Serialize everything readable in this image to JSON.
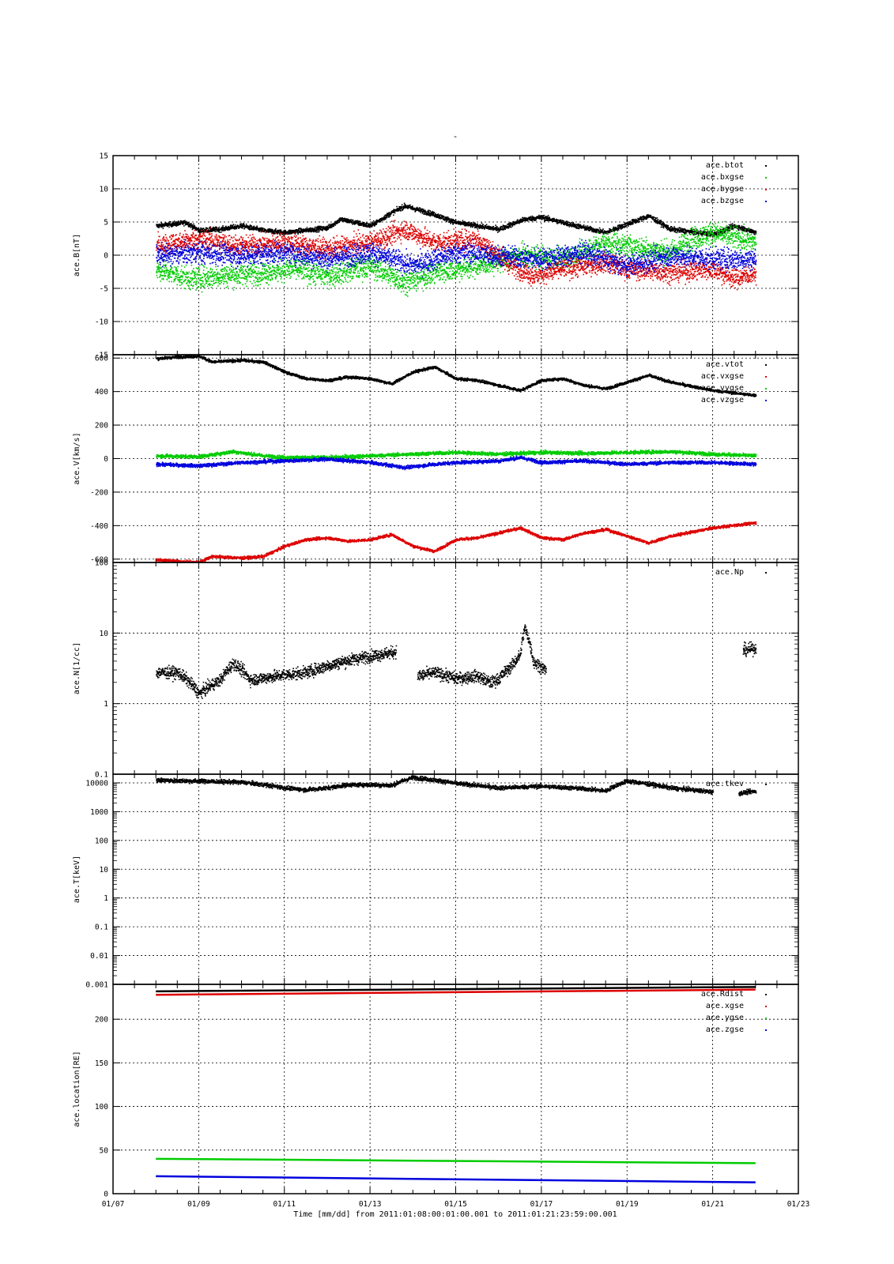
{
  "page_title": "-",
  "x_axis": {
    "label": "Time [mm/dd]  from 2011:01:08:00:01:00.001  to  2011:01:21:23:59:00.001",
    "range_days": [
      7,
      23
    ],
    "tick_labels": [
      "01/07",
      "01/09",
      "01/11",
      "01/13",
      "01/15",
      "01/17",
      "01/19",
      "01/21",
      "01/23"
    ],
    "tick_days": [
      7,
      9,
      11,
      13,
      15,
      17,
      19,
      21,
      23
    ],
    "data_start_day": 8.0,
    "data_end_day": 22.0
  },
  "colors": {
    "black": "#000000",
    "red": "#dd0000",
    "green": "#00cc00",
    "blue": "#0000dd",
    "grid": "#000000"
  },
  "chart_data": [
    {
      "type": "scatter",
      "ylabel": "ace.B[nT]",
      "ylim": [
        -15,
        15
      ],
      "yscale": "linear",
      "yticks": [
        -15,
        -10,
        -5,
        0,
        5,
        10,
        15
      ],
      "ytick_labels": [
        "-15",
        "-10",
        "-5",
        "0",
        "5",
        "10",
        "15"
      ],
      "legend": "top-right",
      "series": [
        {
          "name": "ace.btot",
          "color": "black",
          "noise": 0.35,
          "x": [
            8,
            8.7,
            9,
            9.5,
            10,
            10.5,
            11,
            12,
            12.3,
            13,
            13.5,
            13.8,
            14.5,
            15,
            16,
            16.6,
            17,
            18,
            18.5,
            19,
            19.5,
            20,
            21,
            21.5,
            22
          ],
          "y": [
            4.5,
            5,
            3.8,
            4,
            4.5,
            3.8,
            3.5,
            4.2,
            5.5,
            4.5,
            6.5,
            7.5,
            6.2,
            5,
            4,
            5.5,
            5.8,
            4.2,
            3.5,
            4.8,
            6,
            4,
            3.2,
            4.5,
            3.5
          ]
        },
        {
          "name": "ace.bxgse",
          "color": "green",
          "noise": 1.6,
          "x": [
            8,
            8.8,
            9.5,
            10.5,
            11.2,
            12,
            13,
            13.8,
            14.5,
            15.5,
            16.5,
            17.5,
            18.5,
            19,
            20,
            20.5,
            21,
            22
          ],
          "y": [
            -2,
            -3.5,
            -3,
            -2.5,
            -2,
            -3,
            -1.5,
            -4,
            -2.5,
            -1.5,
            0,
            -0.5,
            2,
            1.5,
            0.5,
            2.5,
            3.5,
            2
          ]
        },
        {
          "name": "ace.bygse",
          "color": "red",
          "noise": 1.4,
          "x": [
            8,
            9,
            10,
            11,
            12,
            13,
            13.8,
            14.5,
            15.5,
            16.3,
            16.8,
            17.5,
            18.5,
            19,
            20,
            21,
            21.5,
            22
          ],
          "y": [
            1.5,
            2.5,
            1.5,
            2,
            1,
            2,
            4,
            2,
            2.5,
            -1.5,
            -3,
            -2,
            -1,
            -2,
            -2.5,
            -2,
            -3.5,
            -2.5
          ]
        },
        {
          "name": "ace.bzgse",
          "color": "blue",
          "noise": 1.5,
          "x": [
            8,
            9,
            10,
            11,
            12,
            13,
            14,
            15,
            16,
            17,
            18,
            19,
            20,
            21,
            22
          ],
          "y": [
            0,
            0.5,
            0,
            0.5,
            -0.5,
            0.5,
            -1.5,
            0.5,
            0,
            -0.5,
            0.5,
            -1.5,
            0,
            -0.5,
            -0.5
          ]
        }
      ]
    },
    {
      "type": "scatter",
      "ylabel": "ace.V[km/s]",
      "ylim": [
        -620,
        620
      ],
      "yscale": "linear",
      "yticks": [
        -600,
        -400,
        -200,
        0,
        200,
        400,
        600
      ],
      "ytick_labels": [
        "-600",
        "-400",
        "-200",
        "0",
        "200",
        "400",
        "600"
      ],
      "legend": "top-right",
      "series": [
        {
          "name": "ace.vtot",
          "color": "black",
          "noise": 8,
          "x": [
            8,
            8.5,
            9,
            9.3,
            10,
            10.5,
            11,
            11.5,
            12,
            12.5,
            13,
            13.5,
            14,
            14.5,
            15,
            15.5,
            16,
            16.5,
            17,
            17.5,
            18,
            18.5,
            19,
            19.5,
            20,
            21,
            22
          ],
          "y": [
            600,
            610,
            615,
            580,
            590,
            580,
            520,
            480,
            470,
            490,
            480,
            450,
            520,
            550,
            480,
            470,
            440,
            410,
            470,
            480,
            440,
            420,
            460,
            500,
            460,
            410,
            380
          ]
        },
        {
          "name": "ace.vxgse",
          "color": "red",
          "noise": 8,
          "x": [
            8,
            8.5,
            9,
            9.3,
            10,
            10.5,
            11,
            11.5,
            12,
            12.5,
            13,
            13.5,
            14,
            14.5,
            15,
            15.5,
            16,
            16.5,
            17,
            17.5,
            18,
            18.5,
            19,
            19.5,
            20,
            21,
            22
          ],
          "y": [
            -600,
            -610,
            -615,
            -580,
            -590,
            -580,
            -520,
            -480,
            -470,
            -490,
            -480,
            -450,
            -520,
            -550,
            -480,
            -470,
            -440,
            -410,
            -470,
            -480,
            -440,
            -420,
            -460,
            -500,
            -460,
            -410,
            -380
          ]
        },
        {
          "name": "ace.vygse",
          "color": "green",
          "noise": 10,
          "x": [
            8,
            9,
            9.8,
            10.5,
            11,
            12,
            13,
            14,
            15,
            16,
            17,
            18,
            19,
            20,
            21,
            22
          ],
          "y": [
            20,
            15,
            45,
            20,
            10,
            10,
            20,
            30,
            40,
            30,
            40,
            35,
            40,
            45,
            30,
            20
          ]
        },
        {
          "name": "ace.vzgse",
          "color": "blue",
          "noise": 10,
          "x": [
            8,
            9,
            10,
            11,
            12,
            13,
            13.8,
            14.5,
            15,
            16,
            16.5,
            17,
            18,
            19,
            20,
            21,
            22
          ],
          "y": [
            -30,
            -40,
            -20,
            -10,
            0,
            -20,
            -50,
            -30,
            -20,
            -10,
            10,
            -20,
            -10,
            -30,
            -20,
            -20,
            -30
          ]
        }
      ]
    },
    {
      "type": "scatter",
      "ylabel": "ace.N[1/cc]",
      "ylim": [
        0.1,
        100
      ],
      "yscale": "log",
      "yticks": [
        0.1,
        1,
        10,
        100
      ],
      "ytick_labels": [
        "0.1",
        "1",
        "10",
        "100"
      ],
      "legend": "top-right",
      "series": [
        {
          "name": "ace.Np",
          "color": "black",
          "noise_log": 0.08,
          "segments": [
            {
              "x": [
                8,
                8.5,
                9,
                9.5,
                9.8,
                10.2,
                11,
                11.5,
                12,
                12.5,
                13,
                13.6
              ],
              "y": [
                2.8,
                2.8,
                1.4,
                2.2,
                3.8,
                2.2,
                2.6,
                2.8,
                3.5,
                4.2,
                4.8,
                5.5
              ]
            },
            {
              "x": [
                14.1,
                14.5,
                15,
                15.5,
                15.8,
                16,
                16.3,
                16.5,
                16.6,
                16.8,
                17.1
              ],
              "y": [
                2.5,
                2.8,
                2.3,
                2.5,
                2.0,
                2.3,
                3.5,
                5,
                12,
                4,
                3
              ]
            },
            {
              "x": [
                21.7,
                22
              ],
              "y": [
                5.8,
                6.2
              ]
            }
          ]
        }
      ]
    },
    {
      "type": "scatter",
      "ylabel": "ace.T[keV]",
      "ylim": [
        0.001,
        20000
      ],
      "yscale": "log",
      "yticks": [
        0.001,
        0.01,
        0.1,
        1,
        10,
        100,
        1000,
        10000
      ],
      "ytick_labels": [
        "0.001",
        "0.01",
        "0.1",
        "1",
        "10",
        "100",
        "1000",
        "10000"
      ],
      "legend": "top-right",
      "series": [
        {
          "name": "ace.tkev",
          "color": "black",
          "noise_log": 0.07,
          "segments": [
            {
              "x": [
                8,
                9,
                10,
                11,
                11.5,
                12,
                12.5,
                13,
                13.5,
                14,
                15,
                16,
                17,
                18,
                18.5,
                19,
                20,
                21
              ],
              "y": [
                13000,
                12000,
                11000,
                7000,
                6000,
                7000,
                9000,
                9000,
                8500,
                16000,
                10000,
                7000,
                8000,
                6500,
                5500,
                12000,
                7000,
                5000
              ]
            },
            {
              "x": [
                21.6,
                22
              ],
              "y": [
                4500,
                5500
              ]
            }
          ]
        }
      ]
    },
    {
      "type": "line",
      "ylabel": "ace.location[RE]",
      "ylim": [
        0,
        240
      ],
      "yscale": "linear",
      "yticks": [
        0,
        50,
        100,
        150,
        200
      ],
      "ytick_labels": [
        "0",
        "50",
        "100",
        "150",
        "200"
      ],
      "legend": "top-right",
      "series": [
        {
          "name": "ace.Rdist",
          "color": "black",
          "x": [
            8,
            22
          ],
          "y": [
            232,
            237
          ]
        },
        {
          "name": "ace.xgse",
          "color": "red",
          "x": [
            8,
            22
          ],
          "y": [
            228,
            234
          ]
        },
        {
          "name": "ace.ygse",
          "color": "green",
          "x": [
            8,
            22
          ],
          "y": [
            40,
            35
          ]
        },
        {
          "name": "ace.zgse",
          "color": "blue",
          "x": [
            8,
            22
          ],
          "y": [
            20,
            13
          ]
        }
      ]
    }
  ]
}
